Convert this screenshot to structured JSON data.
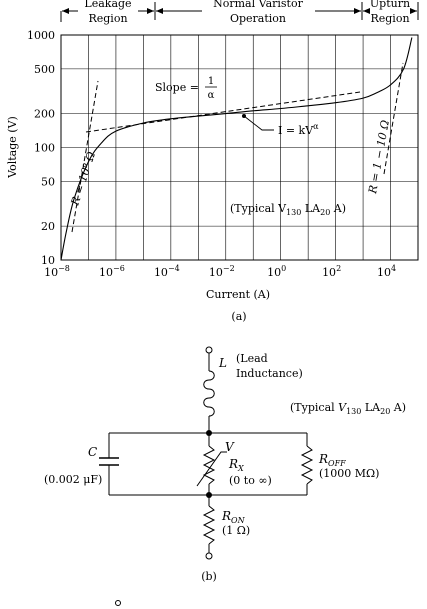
{
  "part_a": {
    "regions": [
      {
        "line1": "Leakage",
        "line2": "Region"
      },
      {
        "line1": "Normal Varistor",
        "line2": "Operation"
      },
      {
        "line1": "Upturn",
        "line2": "Region"
      }
    ],
    "ylabel": "Voltage (V)",
    "xlabel": "Current (A)",
    "yticks": [
      "1000",
      "500",
      "200",
      "100",
      "50",
      "20",
      "10"
    ],
    "xticks": [
      {
        "base": "10",
        "exp": "−8"
      },
      {
        "base": "10",
        "exp": "−6"
      },
      {
        "base": "10",
        "exp": "−4"
      },
      {
        "base": "10",
        "exp": "−2"
      },
      {
        "base": "10",
        "exp": "0"
      },
      {
        "base": "10",
        "exp": "2"
      },
      {
        "base": "10",
        "exp": "4"
      }
    ],
    "slope_text": "Slope =",
    "slope_num": "1",
    "slope_den": "α",
    "law_main": "I = kV",
    "law_sup": "α",
    "r_left": "R = 10⁹ Ω",
    "r_right": "R = 1 − 10 Ω",
    "note_open": "(Typical V",
    "note_sub1": "130",
    "note_mid": " LA",
    "note_sub2": "20",
    "note_end": " A)",
    "caption": "(a)"
  },
  "chart_data": {
    "type": "line",
    "title": "",
    "xlabel": "Current (A)",
    "ylabel": "Voltage (V)",
    "x_scale": "log",
    "y_scale": "log",
    "xlim": [
      1e-08,
      100000.0
    ],
    "ylim": [
      10,
      1000
    ],
    "grid": true,
    "series": [
      {
        "x": [
          1e-08,
          1.5e-08,
          3e-08,
          1e-07,
          3e-07,
          1e-06,
          1e-05,
          0.0001,
          0.001,
          0.01,
          0.1,
          1,
          10,
          100,
          1000,
          3000,
          10000,
          30000,
          60000
        ],
        "y": [
          10,
          17,
          35,
          75,
          110,
          140,
          165,
          180,
          190,
          200,
          212,
          222,
          235,
          250,
          275,
          305,
          360,
          500,
          950
        ]
      }
    ],
    "annotations": [
      "Slope = 1/α",
      "I = kV^α",
      "R = 10⁹ Ω",
      "R = 1 − 10 Ω",
      "(Typical V130 LA20 A)"
    ]
  },
  "part_b": {
    "L": "L",
    "lead1": "(Lead",
    "lead2": "Inductance)",
    "typical_open": "(Typical ",
    "typical_v": "V",
    "typical_sub1": "130",
    "typical_mid": " LA",
    "typical_sub2": "20",
    "typical_end": " A)",
    "C": "C",
    "c_value": "(0.002 μF)",
    "V": "V",
    "R": "R",
    "rx_sub": "X",
    "rx_value": "(0 to ∞)",
    "roff_sub": "OFF",
    "roff_value": "(1000 MΩ)",
    "ron_sub": "ON",
    "ron_value": "(1 Ω)",
    "caption": "(b)"
  }
}
